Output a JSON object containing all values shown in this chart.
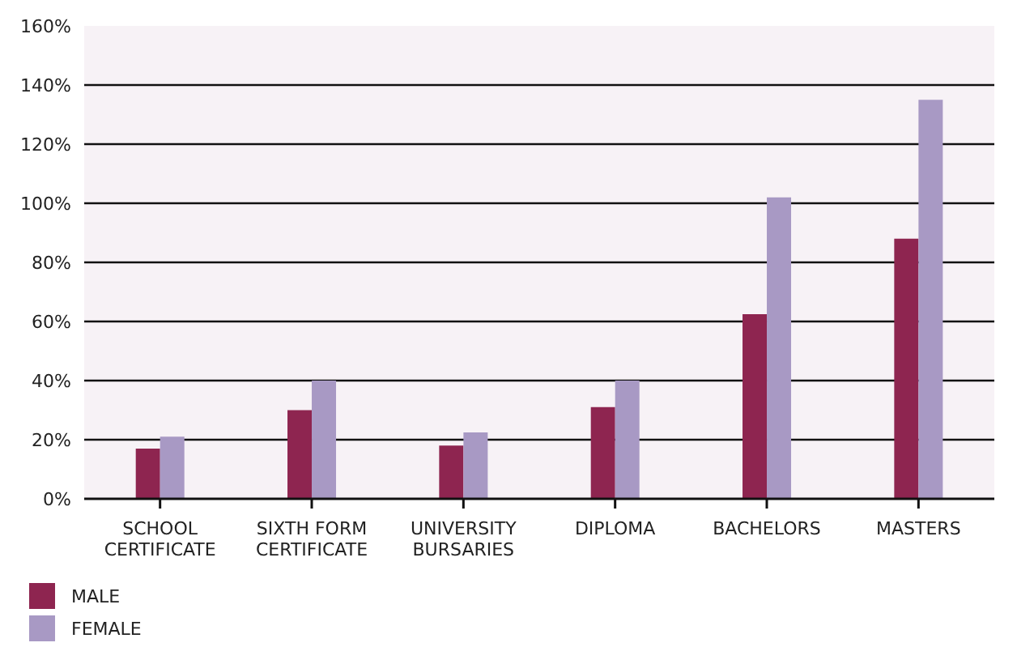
{
  "chart_data": {
    "type": "bar",
    "categories": [
      "SCHOOL\nCERTIFICATE",
      "SIXTH FORM\nCERTIFICATE",
      "UNIVERSITY\nBURSARIES",
      "DIPLOMA",
      "BACHELORS",
      "MASTERS"
    ],
    "series": [
      {
        "name": "MALE",
        "color": "#8e2550",
        "values": [
          17,
          30,
          18,
          31,
          62.5,
          88
        ]
      },
      {
        "name": "FEMALE",
        "color": "#a899c4",
        "values": [
          21,
          40,
          22.5,
          40,
          102,
          135
        ]
      }
    ],
    "ylim": [
      0,
      160
    ],
    "yticks": [
      {
        "value": 0,
        "label": "0%"
      },
      {
        "value": 20,
        "label": "20%"
      },
      {
        "value": 40,
        "label": "40%"
      },
      {
        "value": 60,
        "label": "60%"
      },
      {
        "value": 80,
        "label": "80%"
      },
      {
        "value": 100,
        "label": "100%"
      },
      {
        "value": 120,
        "label": "120%"
      },
      {
        "value": 140,
        "label": "140%"
      },
      {
        "value": 160,
        "label": "160%"
      }
    ],
    "grid": "y",
    "legend": "bottom left"
  }
}
